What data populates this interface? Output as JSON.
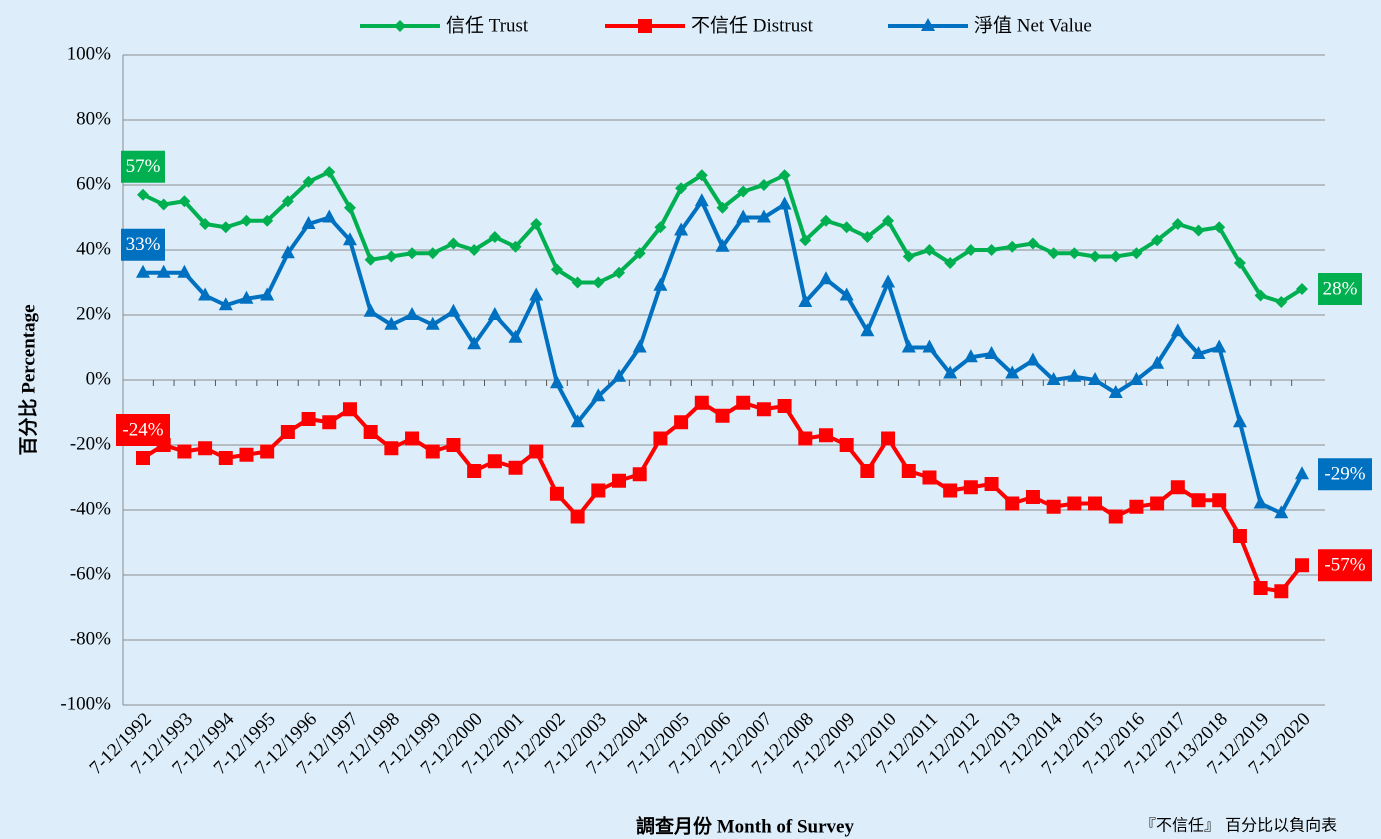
{
  "chart_data": {
    "type": "line",
    "categories": [
      "7-12/1992",
      null,
      "7-12/1993",
      null,
      "7-12/1994",
      null,
      "7-12/1995",
      null,
      "7-12/1996",
      null,
      "7-12/1997",
      null,
      "7-12/1998",
      null,
      "7-12/1999",
      null,
      "7-12/2000",
      null,
      "7-12/2001",
      null,
      "7-12/2002",
      null,
      "7-12/2003",
      null,
      "7-12/2004",
      null,
      "7-12/2005",
      null,
      "7-12/2006",
      null,
      "7-12/2007",
      null,
      "7-12/2008",
      null,
      "7-12/2009",
      null,
      "7-12/2010",
      null,
      "7-12/2011",
      null,
      "7-12/2012",
      null,
      "7-12/2013",
      null,
      "7-12/2014",
      null,
      "7-12/2015",
      null,
      "7-12/2016",
      null,
      "7-12/2017",
      null,
      "7-13/2018",
      null,
      "7-12/2019",
      null,
      "7-12/2020"
    ],
    "series": [
      {
        "name": "信任 Trust",
        "color": "#00b050",
        "marker": "diamond",
        "values": [
          57,
          54,
          55,
          48,
          47,
          49,
          49,
          55,
          61,
          64,
          53,
          37,
          38,
          39,
          39,
          42,
          40,
          44,
          41,
          48,
          34,
          30,
          30,
          33,
          39,
          47,
          59,
          63,
          53,
          58,
          60,
          63,
          43,
          49,
          47,
          44,
          49,
          38,
          40,
          36,
          40,
          40,
          41,
          42,
          39,
          39,
          38,
          38,
          39,
          43,
          48,
          46,
          47,
          36,
          26,
          24,
          28
        ],
        "value_labels": [
          "57%",
          null,
          null,
          null,
          null,
          null,
          null,
          null,
          null,
          null,
          null,
          null,
          null,
          null,
          null,
          null,
          null,
          null,
          null,
          null,
          null,
          null,
          null,
          null,
          null,
          null,
          null,
          null,
          null,
          null,
          null,
          null,
          null,
          null,
          null,
          null,
          null,
          null,
          null,
          null,
          null,
          null,
          null,
          null,
          null,
          null,
          null,
          null,
          null,
          null,
          null,
          null,
          null,
          null,
          null,
          null,
          "28%"
        ]
      },
      {
        "name": "不信任 Distrust",
        "color": "#ff0000",
        "marker": "square",
        "values": [
          -24,
          -20,
          -22,
          -21,
          -24,
          -23,
          -22,
          -16,
          -12,
          -13,
          -9,
          -16,
          -21,
          -18,
          -22,
          -20,
          -28,
          -25,
          -27,
          -22,
          -35,
          -42,
          -34,
          -31,
          -29,
          -18,
          -13,
          -7,
          -11,
          -7,
          -9,
          -8,
          -18,
          -17,
          -20,
          -28,
          -18,
          -28,
          -30,
          -34,
          -33,
          -32,
          -38,
          -36,
          -39,
          -38,
          -38,
          -42,
          -39,
          -38,
          -33,
          -37,
          -37,
          -48,
          -64,
          -65,
          -57
        ],
        "value_labels": [
          "-24%",
          null,
          null,
          null,
          null,
          null,
          null,
          null,
          null,
          null,
          null,
          null,
          null,
          null,
          null,
          null,
          null,
          null,
          null,
          null,
          null,
          null,
          null,
          null,
          null,
          null,
          null,
          null,
          null,
          null,
          null,
          null,
          null,
          null,
          null,
          null,
          null,
          null,
          null,
          null,
          null,
          null,
          null,
          null,
          null,
          null,
          null,
          null,
          null,
          null,
          null,
          null,
          null,
          null,
          null,
          null,
          "-57%"
        ]
      },
      {
        "name": "淨值 Net Value",
        "color": "#0070c0",
        "marker": "triangle",
        "values": [
          33,
          33,
          33,
          26,
          23,
          25,
          26,
          39,
          48,
          50,
          43,
          21,
          17,
          20,
          17,
          21,
          11,
          20,
          13,
          26,
          -1,
          -13,
          -5,
          1,
          10,
          29,
          46,
          55,
          41,
          50,
          50,
          54,
          24,
          31,
          26,
          15,
          30,
          10,
          10,
          2,
          7,
          8,
          2,
          6,
          0,
          1,
          0,
          -4,
          0,
          5,
          15,
          8,
          10,
          -13,
          -38,
          -41,
          -29
        ],
        "value_labels": [
          "33%",
          null,
          null,
          null,
          null,
          null,
          null,
          null,
          null,
          null,
          null,
          null,
          null,
          null,
          null,
          null,
          null,
          null,
          null,
          null,
          null,
          null,
          null,
          null,
          null,
          null,
          null,
          null,
          null,
          null,
          null,
          null,
          null,
          null,
          null,
          null,
          null,
          null,
          null,
          null,
          null,
          null,
          null,
          null,
          null,
          null,
          null,
          null,
          null,
          null,
          null,
          null,
          null,
          null,
          null,
          null,
          "-29%"
        ]
      }
    ],
    "ylim": [
      -100,
      100
    ],
    "yticks": [
      {
        "value": -100,
        "label": "-100%"
      },
      {
        "value": -80,
        "label": "-80%"
      },
      {
        "value": -60,
        "label": "-60%"
      },
      {
        "value": -40,
        "label": "-40%"
      },
      {
        "value": -20,
        "label": "-20%"
      },
      {
        "value": 0,
        "label": "0%"
      },
      {
        "value": 20,
        "label": "20%"
      },
      {
        "value": 40,
        "label": "40%"
      },
      {
        "value": 60,
        "label": "60%"
      },
      {
        "value": 80,
        "label": "80%"
      },
      {
        "value": 100,
        "label": "100%"
      }
    ],
    "grid": true,
    "legend": "top",
    "y_label": "百分比 Percentage",
    "x_label": "調查月份 Month of Survey",
    "note": "『不信任』 百分比以負向表"
  }
}
